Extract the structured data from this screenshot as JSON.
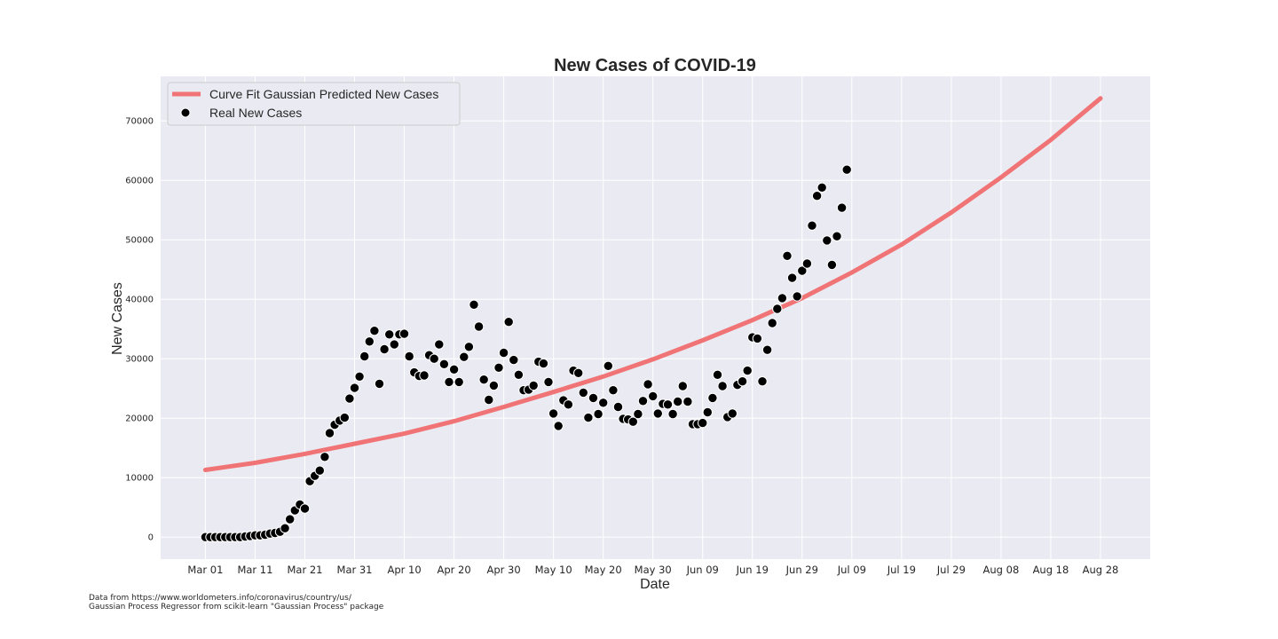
{
  "colors": {
    "plot_bg": "#eaeaf2",
    "grid": "#ffffff",
    "fit_line": "#f07375",
    "points": "#000000",
    "point_edge": "#ffffff"
  },
  "footnotes": {
    "source": "Data from https://www.worldometers.info/coronavirus/country/us/",
    "method": "Gaussian Process Regressor from scikit-learn \"Gaussian Process\" package"
  },
  "chart_data": {
    "type": "scatter",
    "title": "New Cases of COVID-19",
    "xlabel": "Date",
    "ylabel": "New Cases",
    "xlim": [
      "2020-02-21",
      "2020-09-07"
    ],
    "ylim": [
      -3700,
      77500
    ],
    "grid": true,
    "legend_position": "top-left",
    "x_ticks": [
      {
        "date": "2020-03-01",
        "label": "Mar 01"
      },
      {
        "date": "2020-03-11",
        "label": "Mar 11"
      },
      {
        "date": "2020-03-21",
        "label": "Mar 21"
      },
      {
        "date": "2020-03-31",
        "label": "Mar 31"
      },
      {
        "date": "2020-04-10",
        "label": "Apr 10"
      },
      {
        "date": "2020-04-20",
        "label": "Apr 20"
      },
      {
        "date": "2020-04-30",
        "label": "Apr 30"
      },
      {
        "date": "2020-05-10",
        "label": "May 10"
      },
      {
        "date": "2020-05-20",
        "label": "May 20"
      },
      {
        "date": "2020-05-30",
        "label": "May 30"
      },
      {
        "date": "2020-06-09",
        "label": "Jun 09"
      },
      {
        "date": "2020-06-19",
        "label": "Jun 19"
      },
      {
        "date": "2020-06-29",
        "label": "Jun 29"
      },
      {
        "date": "2020-07-09",
        "label": "Jul 09"
      },
      {
        "date": "2020-07-19",
        "label": "Jul 19"
      },
      {
        "date": "2020-07-29",
        "label": "Jul 29"
      },
      {
        "date": "2020-08-08",
        "label": "Aug 08"
      },
      {
        "date": "2020-08-18",
        "label": "Aug 18"
      },
      {
        "date": "2020-08-28",
        "label": "Aug 28"
      }
    ],
    "y_ticks": [
      {
        "value": 0,
        "label": "0"
      },
      {
        "value": 10000,
        "label": "10000"
      },
      {
        "value": 20000,
        "label": "20000"
      },
      {
        "value": 30000,
        "label": "30000"
      },
      {
        "value": 40000,
        "label": "40000"
      },
      {
        "value": 50000,
        "label": "50000"
      },
      {
        "value": 60000,
        "label": "60000"
      },
      {
        "value": 70000,
        "label": "70000"
      }
    ],
    "series": [
      {
        "name": "Curve Fit Gaussian Predicted New Cases",
        "type": "line",
        "color": "#f07375",
        "x": [
          "2020-03-01",
          "2020-03-11",
          "2020-03-21",
          "2020-03-31",
          "2020-04-10",
          "2020-04-20",
          "2020-04-30",
          "2020-05-10",
          "2020-05-20",
          "2020-05-30",
          "2020-06-09",
          "2020-06-19",
          "2020-06-29",
          "2020-07-09",
          "2020-07-19",
          "2020-07-29",
          "2020-08-08",
          "2020-08-18",
          "2020-08-28"
        ],
        "y": [
          11300,
          12500,
          14000,
          15700,
          17400,
          19500,
          21900,
          24400,
          27000,
          29900,
          33100,
          36500,
          40200,
          44500,
          49200,
          54600,
          60500,
          66800,
          73800
        ]
      },
      {
        "name": "Real New Cases",
        "type": "scatter",
        "color": "#000000",
        "start_date": "2020-03-01",
        "y": [
          0,
          0,
          0,
          0,
          0,
          0,
          0,
          0,
          100,
          200,
          300,
          300,
          400,
          600,
          700,
          900,
          1500,
          3000,
          4500,
          5500,
          4800,
          9400,
          10300,
          11200,
          13500,
          17500,
          18900,
          19600,
          20100,
          23300,
          25100,
          27000,
          30400,
          32900,
          34700,
          25800,
          31600,
          34100,
          32400,
          34100,
          34200,
          30400,
          27700,
          27100,
          27200,
          30600,
          30000,
          32400,
          29100,
          26100,
          28200,
          26100,
          30300,
          32000,
          39100,
          35400,
          26500,
          23100,
          25500,
          28500,
          31000,
          36200,
          29800,
          27300,
          24700,
          24800,
          25500,
          29500,
          29200,
          26100,
          20800,
          18700,
          23000,
          22300,
          28000,
          27600,
          24300,
          20100,
          23400,
          20700,
          22600,
          28800,
          24700,
          21900,
          19900,
          19800,
          19400,
          20700,
          22900,
          25700,
          23700,
          20800,
          22400,
          22300,
          20700,
          22800,
          25400,
          22800,
          19000,
          19000,
          19200,
          21000,
          23400,
          27300,
          25400,
          20200,
          20800,
          25600,
          26200,
          28000,
          33600,
          33400,
          26200,
          31500,
          36000,
          38400,
          40200,
          47300,
          43600,
          40500,
          44800,
          46000,
          52400,
          57400,
          58800,
          49900,
          45800,
          50600,
          55400,
          61800
        ]
      }
    ]
  }
}
